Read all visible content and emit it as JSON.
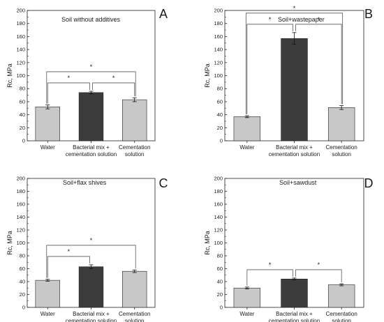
{
  "chart_data": [
    {
      "type": "bar",
      "panel_letter": "A",
      "title": "Soil without additives",
      "ylabel": "Rc, MPa",
      "ylim": [
        0,
        200
      ],
      "yticks": [
        0,
        20,
        40,
        60,
        80,
        100,
        120,
        140,
        160,
        180,
        200
      ],
      "categories": [
        [
          "Water"
        ],
        [
          "Bacterial mix +",
          "cementation solution"
        ],
        [
          "Cementation",
          "solution"
        ]
      ],
      "values": [
        52,
        74,
        63
      ],
      "errors": [
        3,
        2,
        3
      ],
      "bar_colors": [
        "#c8c8c8",
        "#3c3c3c",
        "#c8c8c8"
      ],
      "significance": [
        {
          "from": 0,
          "to": 1,
          "label": "*"
        },
        {
          "from": 1,
          "to": 2,
          "label": "*"
        },
        {
          "from": 0,
          "to": 2,
          "label": "*"
        }
      ]
    },
    {
      "type": "bar",
      "panel_letter": "B",
      "title": "Soil+wastepaper",
      "ylabel": "Rc, MPa",
      "ylim": [
        0,
        200
      ],
      "yticks": [
        0,
        20,
        40,
        60,
        80,
        100,
        120,
        140,
        160,
        180,
        200
      ],
      "categories": [
        [
          "Water"
        ],
        [
          "Bacterial mix +",
          "cementation solution"
        ],
        [
          "Cementation",
          "solution"
        ]
      ],
      "values": [
        37,
        157,
        51
      ],
      "errors": [
        1.5,
        9,
        3
      ],
      "bar_colors": [
        "#c8c8c8",
        "#3c3c3c",
        "#c8c8c8"
      ],
      "significance": [
        {
          "from": 0,
          "to": 1,
          "label": "*"
        },
        {
          "from": 1,
          "to": 2,
          "label": "*"
        },
        {
          "from": 0,
          "to": 2,
          "label": "*"
        }
      ]
    },
    {
      "type": "bar",
      "panel_letter": "C",
      "title": "Soil+flax shives",
      "ylabel": "Rc, MPa",
      "ylim": [
        0,
        200
      ],
      "yticks": [
        0,
        20,
        40,
        60,
        80,
        100,
        120,
        140,
        160,
        180,
        200
      ],
      "categories": [
        [
          "Water"
        ],
        [
          "Bacterial mix +",
          "cementation solution"
        ],
        [
          "Cementation",
          "solution"
        ]
      ],
      "values": [
        42,
        63,
        56
      ],
      "errors": [
        1.5,
        3,
        2
      ],
      "bar_colors": [
        "#c8c8c8",
        "#3c3c3c",
        "#c8c8c8"
      ],
      "significance": [
        {
          "from": 0,
          "to": 1,
          "label": "*"
        },
        {
          "from": 0,
          "to": 2,
          "label": "*"
        }
      ]
    },
    {
      "type": "bar",
      "panel_letter": "D",
      "title": "Soil+sawdust",
      "ylabel": "Rc, MPa",
      "ylim": [
        0,
        200
      ],
      "yticks": [
        0,
        20,
        40,
        60,
        80,
        100,
        120,
        140,
        160,
        180,
        200
      ],
      "categories": [
        [
          "Water"
        ],
        [
          "Bacterial mix +",
          "cementation solution"
        ],
        [
          "Cementation",
          "solution"
        ]
      ],
      "values": [
        30,
        44,
        35
      ],
      "errors": [
        1.5,
        1.5,
        1.5
      ],
      "bar_colors": [
        "#c8c8c8",
        "#3c3c3c",
        "#c8c8c8"
      ],
      "significance": [
        {
          "from": 0,
          "to": 1,
          "label": "*"
        },
        {
          "from": 1,
          "to": 2,
          "label": "*"
        }
      ]
    }
  ]
}
